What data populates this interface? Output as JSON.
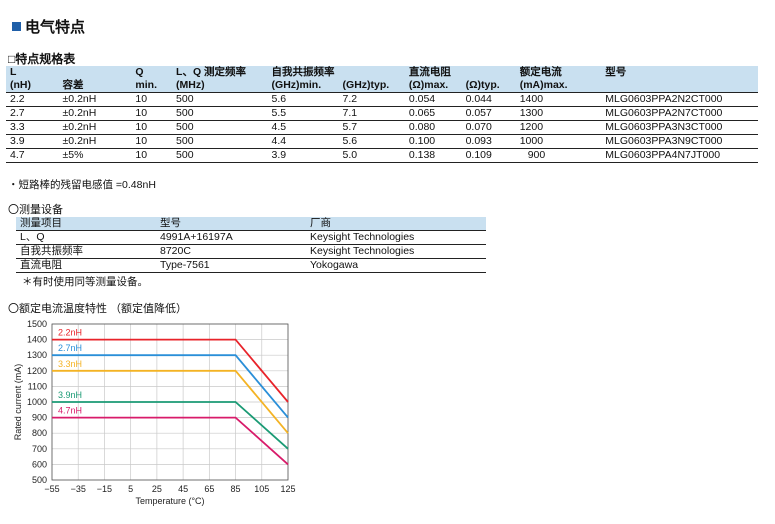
{
  "title": "电气特点",
  "spec_heading": "□特点规格表",
  "spec_table": {
    "header1": [
      "L",
      "",
      "Q",
      "L、Q 测定频率",
      "自我共振频率",
      "",
      "直流电阻",
      "",
      "额定电流",
      "型号"
    ],
    "header2": [
      "(nH)",
      "容差",
      "min.",
      "(MHz)",
      "(GHz)min.",
      "(GHz)typ.",
      "(Ω)max.",
      "(Ω)typ.",
      "(mA)max.",
      ""
    ],
    "rows": [
      [
        "2.2",
        "±0.2nH",
        "10",
        "500",
        "5.6",
        "7.2",
        "0.054",
        "0.044",
        "1400",
        "MLG0603PPA2N2CT000"
      ],
      [
        "2.7",
        "±0.2nH",
        "10",
        "500",
        "5.5",
        "7.1",
        "0.065",
        "0.057",
        "1300",
        "MLG0603PPA2N7CT000"
      ],
      [
        "3.3",
        "±0.2nH",
        "10",
        "500",
        "4.5",
        "5.7",
        "0.080",
        "0.070",
        "1200",
        "MLG0603PPA3N3CT000"
      ],
      [
        "3.9",
        "±0.2nH",
        "10",
        "500",
        "4.4",
        "5.6",
        "0.100",
        "0.093",
        "1000",
        "MLG0603PPA3N9CT000"
      ],
      [
        "4.7",
        "±5%",
        "10",
        "500",
        "3.9",
        "5.0",
        "0.138",
        "0.109",
        "900",
        "MLG0603PPA4N7JT000"
      ]
    ]
  },
  "spec_note": "・短路棒的残留电感值 =0.48nH",
  "measure_heading": "〇测量设备",
  "measure_table": {
    "header": [
      "测量项目",
      "型号",
      "厂商"
    ],
    "rows": [
      [
        "L、Q",
        "4991A+16197A",
        "Keysight Technologies"
      ],
      [
        "自我共振频率",
        "8720C",
        "Keysight Technologies"
      ],
      [
        "直流电阻",
        "Type-7561",
        "Yokogawa"
      ]
    ]
  },
  "measure_note": "＊有时使用同等测量设备。",
  "chart_heading": "〇额定电流温度特性 （额定值降低）",
  "chart_data": {
    "type": "line",
    "xlabel": "Temperature (°C)",
    "ylabel": "Rated current (mA)",
    "xlim": [
      -55,
      125
    ],
    "ylim": [
      500,
      1500
    ],
    "xticks": [
      -55,
      -35,
      -15,
      5,
      25,
      45,
      65,
      85,
      105,
      125
    ],
    "xtick_labels": [
      "−55",
      "−35",
      "−15",
      "5",
      "25",
      "45",
      "65",
      "85",
      "105",
      "125"
    ],
    "yticks": [
      500,
      600,
      700,
      800,
      900,
      1000,
      1100,
      1200,
      1300,
      1400,
      1500
    ],
    "grid": true,
    "series": [
      {
        "name": "2.2nH",
        "color": "#e8232a",
        "x": [
          -55,
          85,
          125
        ],
        "y": [
          1400,
          1400,
          1000
        ]
      },
      {
        "name": "2.7nH",
        "color": "#2a8fd8",
        "x": [
          -55,
          85,
          125
        ],
        "y": [
          1300,
          1300,
          900
        ]
      },
      {
        "name": "3.3nH",
        "color": "#f4b324",
        "x": [
          -55,
          85,
          125
        ],
        "y": [
          1200,
          1200,
          800
        ]
      },
      {
        "name": "3.9nH",
        "color": "#1a9a74",
        "x": [
          -55,
          85,
          125
        ],
        "y": [
          1000,
          1000,
          700
        ]
      },
      {
        "name": "4.7nH",
        "color": "#d81b6a",
        "x": [
          -55,
          85,
          125
        ],
        "y": [
          900,
          900,
          600
        ]
      }
    ]
  }
}
